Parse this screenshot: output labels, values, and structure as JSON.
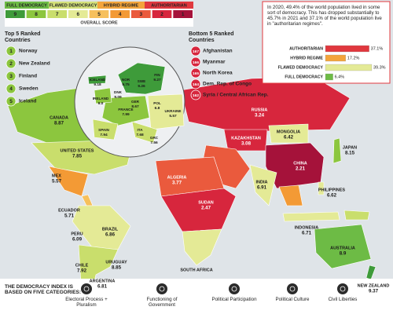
{
  "legend": {
    "categories": [
      {
        "label": "FULL DEMOCRACY",
        "color": "#6dbb45"
      },
      {
        "label": "FLAWED DEMOCRACY",
        "color": "#d4e07a"
      },
      {
        "label": "HYBRID REGIME",
        "color": "#f3a43b"
      },
      {
        "label": "AUTHORITARIAN",
        "color": "#e0383e"
      }
    ],
    "scale": [
      9,
      8,
      7,
      6,
      5,
      4,
      3,
      2,
      1
    ],
    "scale_colors": [
      "#3e9b3a",
      "#8cc63e",
      "#c9de6c",
      "#e4ea96",
      "#f6c05c",
      "#f39a35",
      "#ea5a3d",
      "#d7263d",
      "#a5123a"
    ],
    "scale_title": "OVERALL SCORE"
  },
  "summary": {
    "text": "In 2020, 49.4% of the world population lived in some sort of democracy. This has dropped substantially to 45.7% in 2021 and 37.1% of the world population live in \"authoritarian regimes\".",
    "chart": {
      "type": "bar",
      "categories": [
        "AUTHORITARIAN",
        "HYBRID REGIME",
        "FLAWED DEMOCRACY",
        "FULL DEMOCRACY"
      ],
      "values": [
        37.1,
        17.2,
        39.3,
        6.4
      ],
      "value_labels": [
        "37.1%",
        "17.2%",
        "39.3%",
        "6.4%"
      ],
      "colors": [
        "#e0383e",
        "#f3a43b",
        "#e4ea96",
        "#6dbb45"
      ]
    }
  },
  "top5": {
    "title": "Top 5 Ranked Countries",
    "items": [
      {
        "rank": 1,
        "name": "Norway"
      },
      {
        "rank": 2,
        "name": "New Zealand"
      },
      {
        "rank": 3,
        "name": "Finland"
      },
      {
        "rank": 4,
        "name": "Sweden"
      },
      {
        "rank": 5,
        "name": "Iceland"
      }
    ]
  },
  "bottom5": {
    "title": "Bottom 5 Ranked Countries",
    "items": [
      {
        "rank": 167,
        "name": "Afghanistan"
      },
      {
        "rank": 166,
        "name": "Myanmar"
      },
      {
        "rank": 165,
        "name": "North Korea"
      },
      {
        "rank": 164,
        "name": "Dem. Rep. of Congo"
      },
      {
        "rank": 162,
        "name": "Syria / Central African Rep."
      }
    ]
  },
  "map_labels": [
    {
      "name": "CANADA",
      "score": "8.87"
    },
    {
      "name": "UNITED STATES",
      "score": "7.85"
    },
    {
      "name": "MEX",
      "score": "5.57"
    },
    {
      "name": "ECUADOR",
      "score": "5.71"
    },
    {
      "name": "PERU",
      "score": "6.09"
    },
    {
      "name": "BRAZIL",
      "score": "6.86"
    },
    {
      "name": "CHILE",
      "score": "7.92"
    },
    {
      "name": "URUGUAY",
      "score": "8.85"
    },
    {
      "name": "ARGENTINA",
      "score": "6.81"
    },
    {
      "name": "RUSSIA",
      "score": "3.24"
    },
    {
      "name": "KAZAKHSTAN",
      "score": "3.08"
    },
    {
      "name": "MONGOLIA",
      "score": "6.42"
    },
    {
      "name": "CHINA",
      "score": "2.21"
    },
    {
      "name": "JAPAN",
      "score": "8.15"
    },
    {
      "name": "INDIA",
      "score": "6.91"
    },
    {
      "name": "PHILIPPINES",
      "score": "6.62"
    },
    {
      "name": "INDONESIA",
      "score": "6.71"
    },
    {
      "name": "AUSTRALIA",
      "score": "8.9"
    },
    {
      "name": "NEW ZEALAND",
      "score": "9.37"
    },
    {
      "name": "ALGERIA",
      "score": "3.77"
    },
    {
      "name": "SUDAN",
      "score": "2.47"
    },
    {
      "name": "SOUTH AFRICA"
    },
    {
      "name": "ICELAND",
      "score": "9.18"
    },
    {
      "name": "IRELAND",
      "score": "9.0"
    },
    {
      "name": "SPAIN",
      "score": "7.94"
    },
    {
      "name": "FRANCE",
      "score": "7.99"
    },
    {
      "name": "NOR",
      "score": "9.75"
    },
    {
      "name": "SWE",
      "score": "9.26"
    },
    {
      "name": "FIN",
      "score": "9.27"
    },
    {
      "name": "DNK",
      "score": "9.09"
    },
    {
      "name": "GER",
      "score": "8.67"
    },
    {
      "name": "POL",
      "score": "6.8"
    },
    {
      "name": "UKRAINE",
      "score": "5.57"
    },
    {
      "name": "ITA",
      "score": "7.68"
    },
    {
      "name": "GRC",
      "score": "7.56"
    }
  ],
  "footer": {
    "title": "THE DEMOCRACY INDEX IS BASED ON FIVE CATEGORIES:",
    "categories": [
      "Electoral Process + Pluralism",
      "Functioning of Government",
      "Political Participation",
      "Political Culture",
      "Civil Liberties"
    ]
  }
}
